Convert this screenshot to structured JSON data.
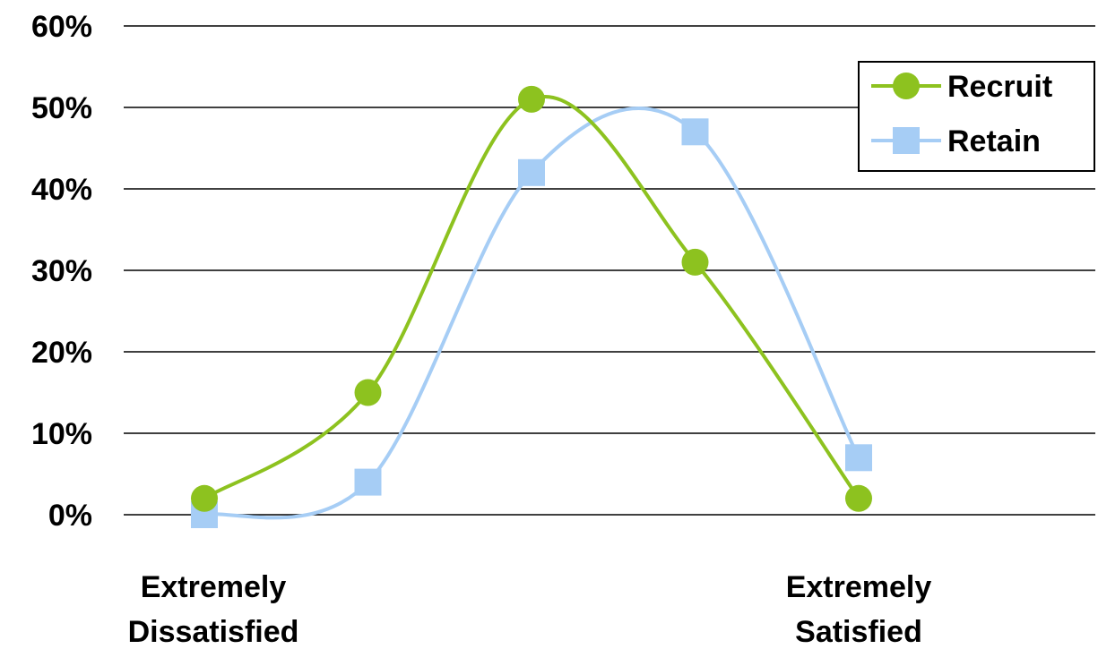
{
  "chart_data": {
    "type": "line",
    "x_categories": [
      1,
      2,
      3,
      4,
      5
    ],
    "x_labels": [
      {
        "at": 1,
        "lines": [
          "Extremely",
          "Dissatisfied"
        ]
      },
      {
        "at": 5,
        "lines": [
          "Extremely",
          "Satisfied"
        ]
      }
    ],
    "ylim": [
      0,
      60
    ],
    "y_ticks": [
      0,
      10,
      20,
      30,
      40,
      50,
      60
    ],
    "y_tick_labels": [
      "0%",
      "10%",
      "20%",
      "30%",
      "40%",
      "50%",
      "60%"
    ],
    "grid": true,
    "smooth": true,
    "legend_position": "top-right",
    "series": [
      {
        "name": "Recruit",
        "marker": "circle",
        "color": "#8dc21f",
        "values": [
          2,
          15,
          51,
          31,
          2
        ]
      },
      {
        "name": "Retain",
        "marker": "square",
        "color": "#a6cdf5",
        "values": [
          0,
          4,
          42,
          47,
          7
        ]
      }
    ]
  }
}
